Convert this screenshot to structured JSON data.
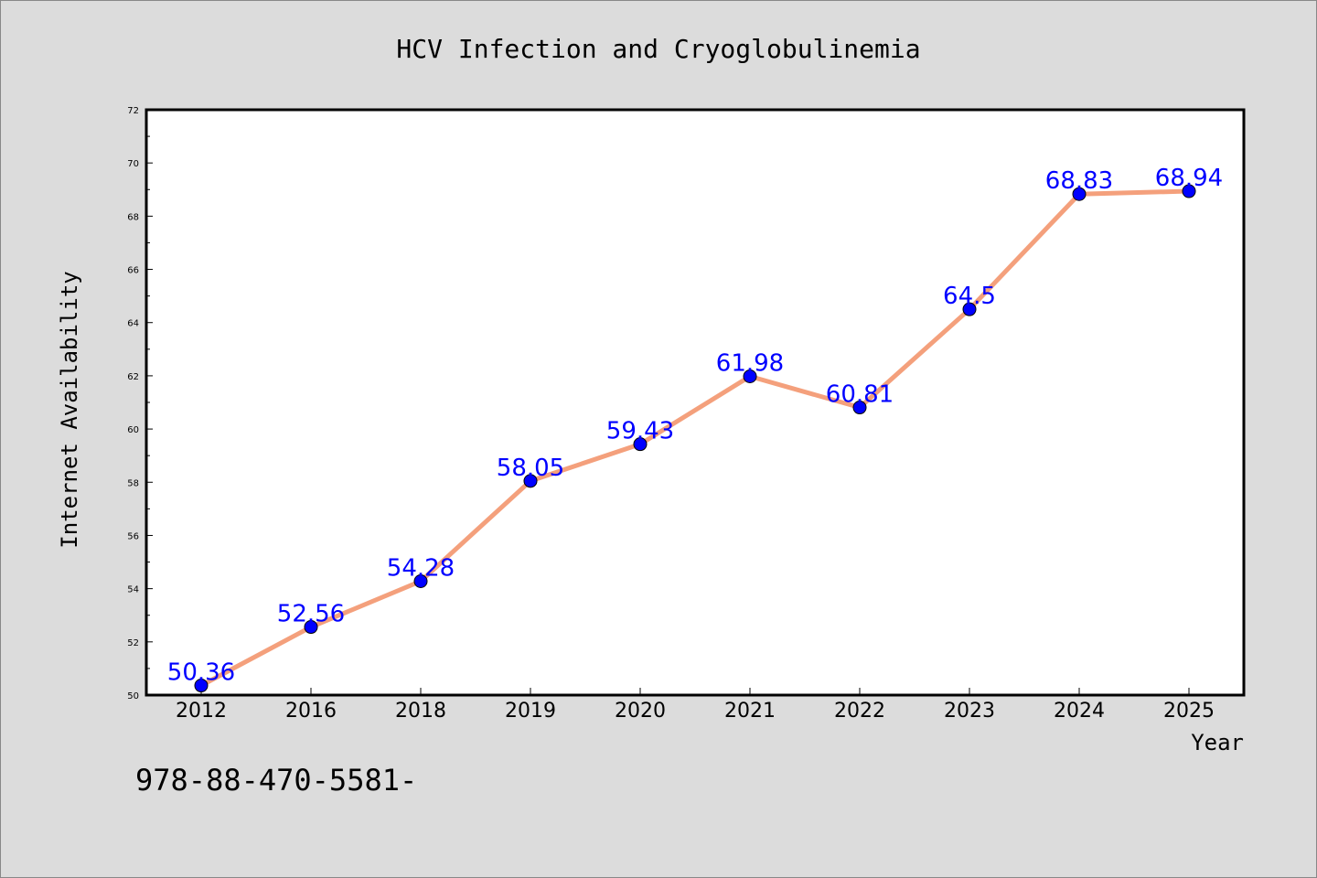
{
  "chart_data": {
    "type": "line",
    "title": "HCV Infection and Cryoglobulinemia",
    "xlabel": "Year",
    "ylabel": "Internet Availability",
    "categories": [
      "2012",
      "2016",
      "2018",
      "2019",
      "2020",
      "2021",
      "2022",
      "2023",
      "2024",
      "2025"
    ],
    "values": [
      50.36,
      52.56,
      54.28,
      58.05,
      59.43,
      61.98,
      60.81,
      64.5,
      68.83,
      68.94
    ],
    "data_labels": [
      "50.36",
      "52.56",
      "54.28",
      "58.05",
      "59.43",
      "61.98",
      "60.81",
      "64.5",
      "68.83",
      "68.94"
    ],
    "ylim": [
      50,
      72
    ],
    "yticks": [
      50,
      52,
      54,
      56,
      58,
      60,
      62,
      64,
      66,
      68,
      70,
      72
    ],
    "grid": false,
    "legend": "none",
    "colors": {
      "line": "#f4a07c",
      "marker": "#0000ff",
      "label": "#0000ff",
      "background": "#dcdcdc",
      "plot_background": "#ffffff"
    }
  },
  "footer_text": "978-88-470-5581-"
}
